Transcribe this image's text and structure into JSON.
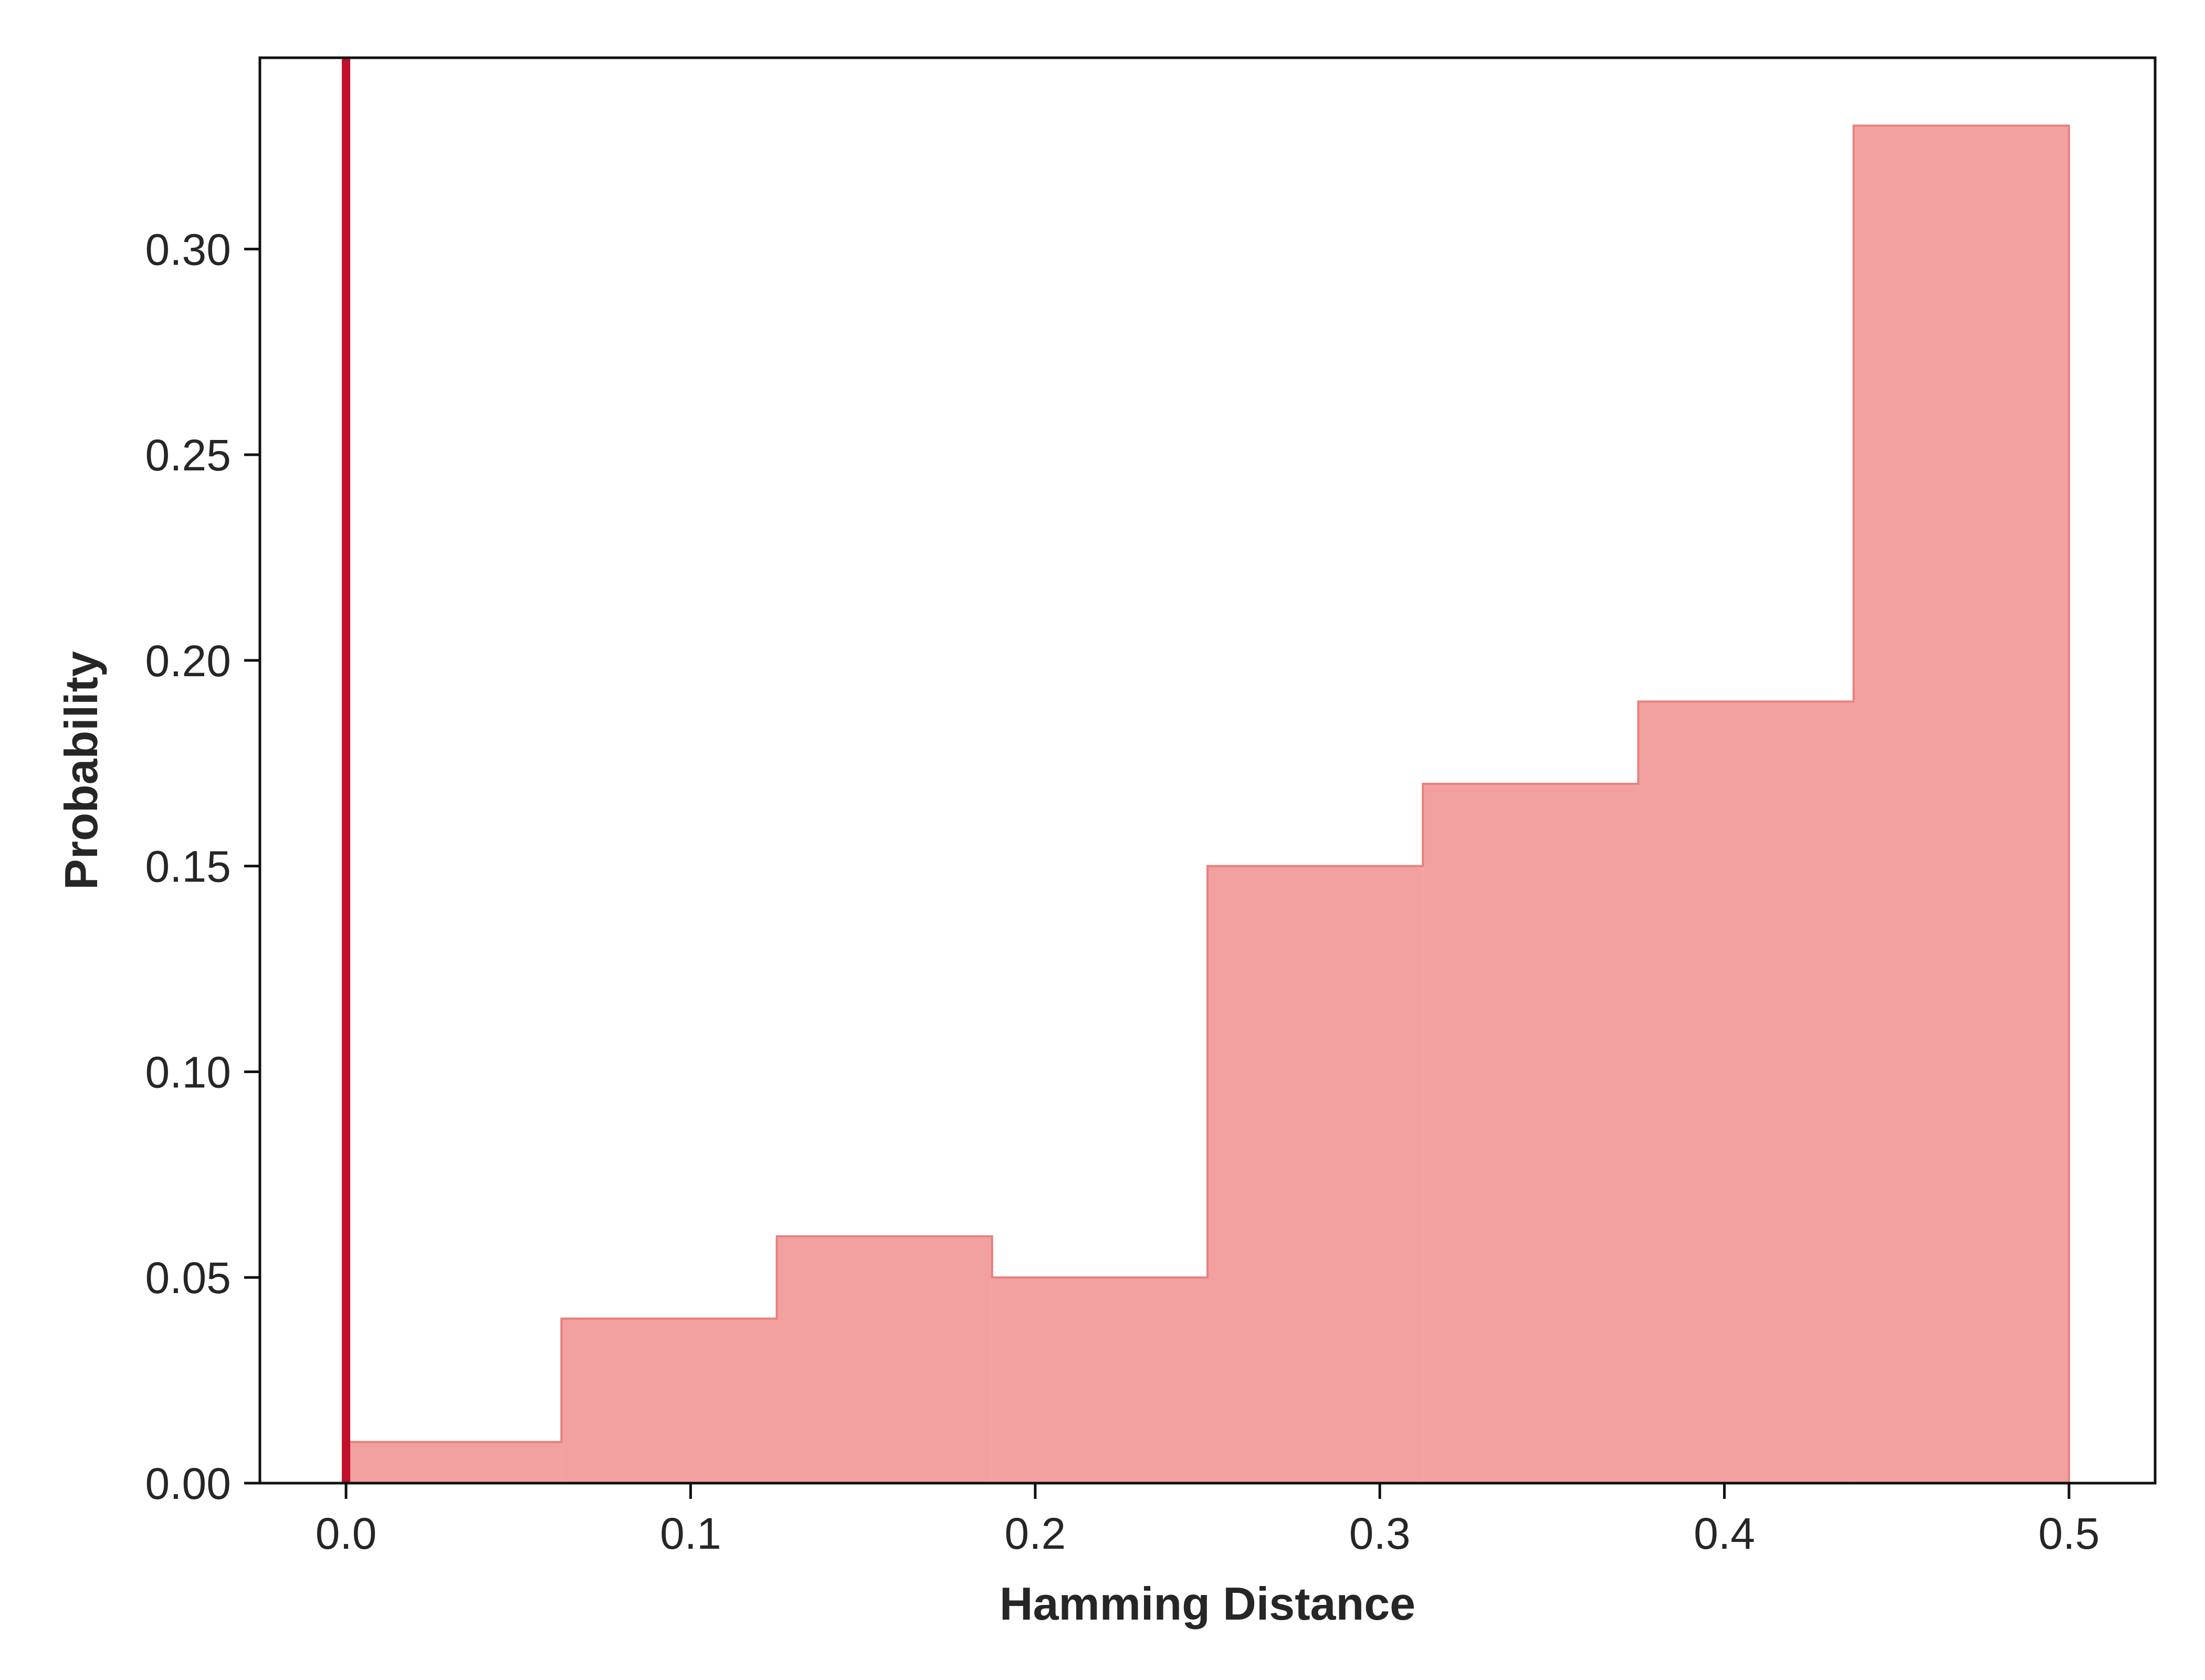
{
  "chart_data": {
    "type": "histogram",
    "title": "",
    "xlabel": "Hamming Distance",
    "ylabel": "Probability",
    "xlim": [
      -0.025,
      0.525
    ],
    "ylim": [
      0,
      0.3465
    ],
    "x_ticks": [
      0.0,
      0.1,
      0.2,
      0.3,
      0.4,
      0.5
    ],
    "x_tick_labels": [
      "0.0",
      "0.1",
      "0.2",
      "0.3",
      "0.4",
      "0.5"
    ],
    "y_ticks": [
      0.0,
      0.05,
      0.1,
      0.15,
      0.2,
      0.25,
      0.3
    ],
    "y_tick_labels": [
      "0.00",
      "0.05",
      "0.10",
      "0.15",
      "0.20",
      "0.25",
      "0.30"
    ],
    "bin_edges": [
      0.0,
      0.0625,
      0.125,
      0.1875,
      0.25,
      0.3125,
      0.375,
      0.4375,
      0.5
    ],
    "values": [
      0.01,
      0.04,
      0.06,
      0.05,
      0.15,
      0.17,
      0.19,
      0.33
    ],
    "vertical_line_x": 0.0,
    "grid": false,
    "colors": {
      "fill": "#f2a0a0",
      "edge": "#e88080",
      "vline": "#c0102c",
      "axis": "#111111"
    }
  }
}
